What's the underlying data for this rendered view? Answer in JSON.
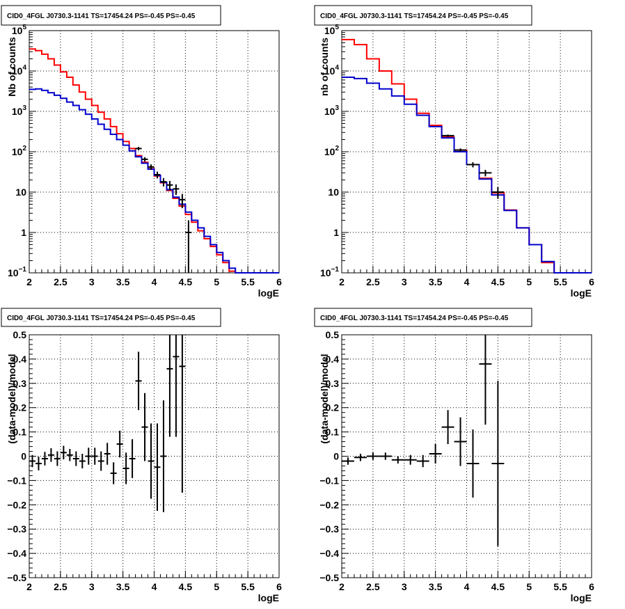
{
  "chart_data": [
    {
      "type": "step-histogram",
      "title": "CID0_4FGL J0730.3-1141 TS=17454.24 PS=-0.45 PS=-0.45",
      "xlabel": "logE",
      "ylabel": "Nb of counts",
      "xlim": [
        2,
        6
      ],
      "ylim": [
        0.1,
        100000
      ],
      "yscale": "log",
      "grid": true,
      "xticks": [
        "2",
        "2.5",
        "3",
        "3.5",
        "4",
        "4.5",
        "5",
        "5.5",
        "6"
      ],
      "yticks": [
        {
          "value": 0.1,
          "label": "10",
          "exp": "−1"
        },
        {
          "value": 1,
          "label": "1",
          "exp": ""
        },
        {
          "value": 10,
          "label": "10",
          "exp": ""
        },
        {
          "value": 100,
          "label": "10",
          "exp": "2"
        },
        {
          "value": 1000,
          "label": "10",
          "exp": "3"
        },
        {
          "value": 10000,
          "label": "10",
          "exp": "4"
        },
        {
          "value": 100000,
          "label": "10",
          "exp": "5"
        }
      ],
      "bin_edges": [
        2.0,
        2.1,
        2.2,
        2.3,
        2.4,
        2.5,
        2.6,
        2.7,
        2.8,
        2.9,
        3.0,
        3.1,
        3.2,
        3.3,
        3.4,
        3.5,
        3.6,
        3.7,
        3.8,
        3.9,
        4.0,
        4.1,
        4.2,
        4.3,
        4.4,
        4.5,
        4.6,
        4.7,
        4.8,
        4.9,
        5.0,
        5.1,
        5.2,
        5.3,
        5.4,
        5.5,
        5.6,
        5.7,
        5.8,
        5.9,
        6.0
      ],
      "series": [
        {
          "color": "#ff0000",
          "values": [
            35000,
            32000,
            26000,
            20000,
            14000,
            9500,
            7000,
            4500,
            3000,
            2000,
            1400,
            950,
            650,
            420,
            280,
            180,
            120,
            80,
            55,
            38,
            25,
            17,
            11,
            7,
            4.5,
            2.8,
            1.8,
            1.1,
            0.7,
            0.45,
            0.28,
            0.18,
            0.11,
            0.1,
            0.1,
            0.1,
            0.1,
            0.1,
            0.1,
            0.1
          ]
        },
        {
          "color": "#0000cc",
          "values": [
            3500,
            3600,
            3300,
            2900,
            2500,
            2100,
            1700,
            1400,
            1100,
            850,
            650,
            480,
            360,
            270,
            200,
            145,
            105,
            75,
            52,
            37,
            26,
            17.5,
            11.5,
            7.5,
            5,
            3.2,
            2,
            1.3,
            0.8,
            0.5,
            0.32,
            0.2,
            0.13,
            0.1,
            0.1,
            0.1,
            0.1,
            0.1,
            0.1,
            0.1
          ]
        }
      ],
      "points": {
        "x": [
          3.75,
          3.85,
          3.95,
          4.05,
          4.15,
          4.25,
          4.35,
          4.45,
          4.55
        ],
        "y": [
          120,
          65,
          42,
          27,
          18,
          15,
          12,
          6.5,
          1
        ],
        "xerr": 0.05,
        "yerr_low": [
          12,
          8,
          6.5,
          5.2,
          4.2,
          3.9,
          3.5,
          2.5,
          0.999
        ],
        "yerr_high": [
          12,
          8,
          6.5,
          5.2,
          4.2,
          3.9,
          3.5,
          2.5,
          1
        ]
      }
    },
    {
      "type": "step-histogram",
      "title": "CID0_4FGL J0730.3-1141 TS=17454.24 PS=-0.45 PS=-0.45",
      "xlabel": "logE",
      "ylabel": "nb of counts",
      "xlim": [
        2,
        6
      ],
      "ylim": [
        0.1,
        100000
      ],
      "yscale": "log",
      "grid": true,
      "xticks": [
        "2",
        "2.5",
        "3",
        "3.5",
        "4",
        "4.5",
        "5",
        "5.5",
        "6"
      ],
      "yticks": [
        {
          "value": 0.1,
          "label": "10",
          "exp": "−1"
        },
        {
          "value": 1,
          "label": "1",
          "exp": ""
        },
        {
          "value": 10,
          "label": "10",
          "exp": ""
        },
        {
          "value": 100,
          "label": "10",
          "exp": "2"
        },
        {
          "value": 1000,
          "label": "10",
          "exp": "3"
        },
        {
          "value": 10000,
          "label": "10",
          "exp": "4"
        },
        {
          "value": 100000,
          "label": "10",
          "exp": "5"
        }
      ],
      "bin_edges": [
        2.0,
        2.2,
        2.4,
        2.6,
        2.8,
        3.0,
        3.2,
        3.4,
        3.6,
        3.8,
        4.0,
        4.2,
        4.4,
        4.6,
        4.8,
        5.0,
        5.2,
        5.4,
        5.6,
        5.8,
        6.0
      ],
      "series": [
        {
          "color": "#ff0000",
          "values": [
            60000,
            45000,
            20000,
            10000,
            4800,
            2000,
            900,
            450,
            230,
            110,
            48,
            22,
            9.5,
            3.6,
            1.3,
            0.5,
            0.18,
            0.1,
            0.1,
            0.1
          ]
        },
        {
          "color": "#0000cc",
          "values": [
            7000,
            6500,
            5000,
            3600,
            2400,
            1500,
            800,
            420,
            220,
            100,
            48,
            21,
            8.5,
            3.5,
            1.3,
            0.5,
            0.19,
            0.1,
            0.1,
            0.1
          ]
        }
      ],
      "points": {
        "x": [
          3.7,
          3.9,
          4.1,
          4.3,
          4.5
        ],
        "y": [
          250,
          110,
          48,
          30,
          10
        ],
        "xerr": 0.1,
        "yerr_low": [
          16,
          10.5,
          7,
          5.5,
          3.2
        ],
        "yerr_high": [
          16,
          10.5,
          7,
          5.5,
          3.2
        ]
      }
    },
    {
      "type": "scatter",
      "title": "CID0_4FGL J0730.3-1141 TS=17454.24 PS=-0.45 PS=-0.45",
      "xlabel": "logE",
      "ylabel": "(data-model)/model",
      "xlim": [
        2,
        6
      ],
      "ylim": [
        -0.5,
        0.5
      ],
      "grid": true,
      "xticks": [
        "2",
        "2.5",
        "3",
        "3.5",
        "4",
        "4.5",
        "5",
        "5.5",
        "6"
      ],
      "yticks": [
        "−0.5",
        "−0.4",
        "−0.3",
        "−0.2",
        "−0.1",
        "0",
        "0.1",
        "0.2",
        "0.3",
        "0.4",
        "0.5"
      ],
      "points": {
        "x": [
          2.05,
          2.15,
          2.25,
          2.35,
          2.45,
          2.55,
          2.65,
          2.75,
          2.85,
          2.95,
          3.05,
          3.15,
          3.25,
          3.35,
          3.45,
          3.55,
          3.65,
          3.75,
          3.85,
          3.95,
          4.05,
          4.15,
          4.25,
          4.35,
          4.45
        ],
        "y": [
          -0.02,
          -0.03,
          -0.01,
          0.005,
          -0.01,
          0.015,
          0.005,
          -0.01,
          -0.02,
          0.0,
          0.0,
          -0.02,
          0.01,
          -0.07,
          0.05,
          -0.05,
          -0.01,
          0.31,
          0.12,
          -0.02,
          -0.045,
          0.0,
          0.36,
          0.41,
          0.37
        ],
        "xerr": 0.05,
        "yerr": [
          0.025,
          0.028,
          0.028,
          0.028,
          0.03,
          0.028,
          0.025,
          0.03,
          0.03,
          0.035,
          0.035,
          0.04,
          0.045,
          0.045,
          0.055,
          0.065,
          0.08,
          0.12,
          0.14,
          0.155,
          0.18,
          0.23,
          0.28,
          0.33,
          0.52
        ]
      }
    },
    {
      "type": "scatter",
      "title": "CID0_4FGL J0730.3-1141 TS=17454.24 PS=-0.45 PS=-0.45",
      "xlabel": "logE",
      "ylabel": "(data-model)/model",
      "xlim": [
        2,
        6
      ],
      "ylim": [
        -0.5,
        0.5
      ],
      "grid": true,
      "xticks": [
        "2",
        "2.5",
        "3",
        "3.5",
        "4",
        "4.5",
        "5",
        "5.5",
        "6"
      ],
      "yticks": [
        "−0.5",
        "−0.4",
        "−0.3",
        "−0.2",
        "−0.1",
        "0",
        "0.1",
        "0.2",
        "0.3",
        "0.4",
        "0.5"
      ],
      "points": {
        "x": [
          2.1,
          2.3,
          2.5,
          2.7,
          2.9,
          3.1,
          3.3,
          3.5,
          3.7,
          3.9,
          4.1,
          4.3,
          4.5
        ],
        "y": [
          -0.02,
          -0.005,
          0.0,
          0.0,
          -0.015,
          -0.015,
          -0.02,
          0.01,
          0.12,
          0.06,
          -0.03,
          0.38,
          -0.03
        ],
        "xerr": 0.1,
        "yerr": [
          0.015,
          0.015,
          0.015,
          0.015,
          0.015,
          0.02,
          0.025,
          0.04,
          0.07,
          0.1,
          0.14,
          0.25,
          0.34
        ]
      }
    }
  ]
}
